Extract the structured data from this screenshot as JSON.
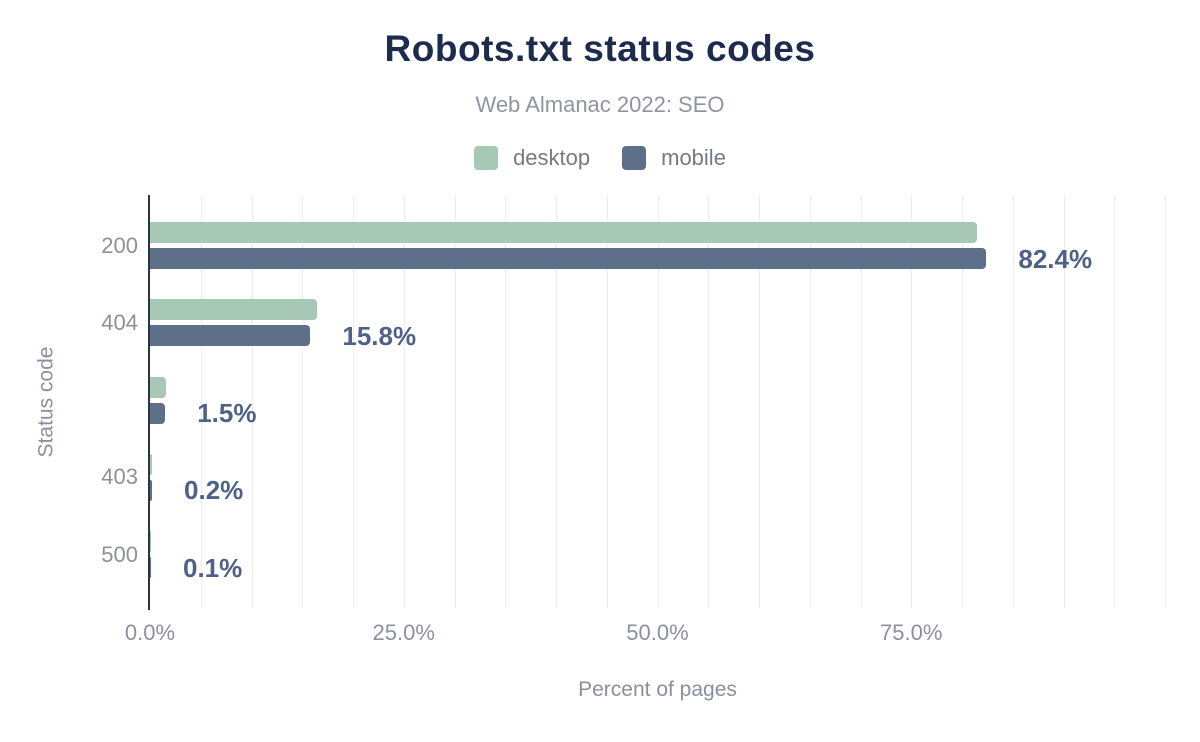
{
  "chart_data": {
    "type": "bar",
    "orientation": "horizontal",
    "title": "Robots.txt status codes",
    "subtitle": "Web Almanac 2022: SEO",
    "categories": [
      "200",
      "404",
      "",
      "403",
      "500"
    ],
    "series": [
      {
        "name": "desktop",
        "color": "#a7c8b4",
        "values": [
          81.5,
          16.5,
          1.6,
          0.2,
          0.1
        ]
      },
      {
        "name": "mobile",
        "color": "#5e7089",
        "values": [
          82.4,
          15.8,
          1.5,
          0.2,
          0.1
        ]
      }
    ],
    "value_labels": [
      "82.4%",
      "15.8%",
      "1.5%",
      "0.2%",
      "0.1%"
    ],
    "value_labels_for_series": "mobile",
    "xlabel": "Percent of pages",
    "ylabel": "Status code",
    "x_ticks": [
      {
        "label": "0.0%",
        "percent": 0
      },
      {
        "label": "25.0%",
        "percent": 25
      },
      {
        "label": "50.0%",
        "percent": 50
      },
      {
        "label": "75.0%",
        "percent": 75
      }
    ],
    "xlim": [
      0,
      100
    ],
    "grid": "vertical",
    "grid_step_percent": 5,
    "legend_position": "top-center",
    "colors": {
      "title_text": "#1d2b4d",
      "subtitle_text": "#8f95a0",
      "axis_line": "#2d3440",
      "gridline": "#ededf1",
      "tick_text": "#8b919c",
      "legend_text": "#747b86",
      "value_label_text": "#4e6186",
      "background": "#ffffff"
    }
  }
}
